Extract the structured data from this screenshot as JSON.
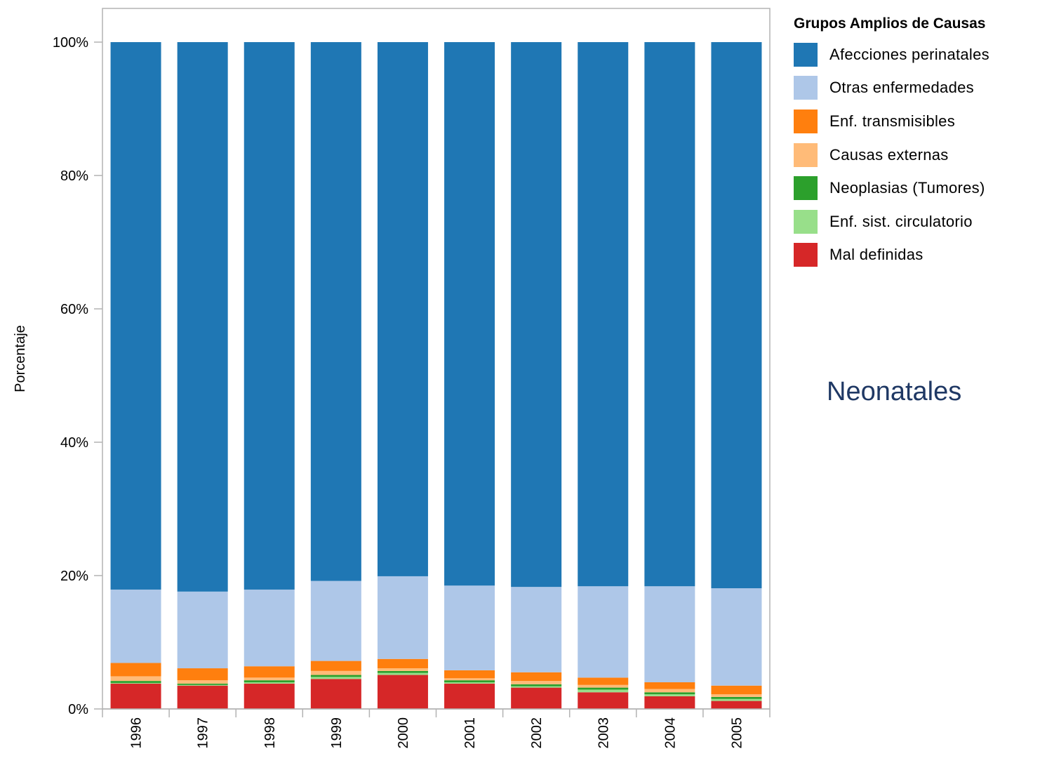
{
  "chart_data": {
    "type": "bar",
    "stacked": true,
    "categories": [
      "1996",
      "1997",
      "1998",
      "1999",
      "2000",
      "2001",
      "2002",
      "2003",
      "2004",
      "2005"
    ],
    "ylabel": "Porcentaje",
    "ylim": [
      0,
      100
    ],
    "yticks": [
      "0%",
      "20%",
      "40%",
      "60%",
      "80%",
      "100%"
    ],
    "grid": false,
    "legend": {
      "title": "Grupos Amplios de Causas",
      "placement": "right"
    },
    "annotation": "Neonatales",
    "series": [
      {
        "name": "Mal definidas",
        "color": "#d62728",
        "values": [
          3.8,
          3.5,
          3.8,
          4.5,
          5.1,
          3.8,
          3.2,
          2.5,
          1.9,
          1.2
        ]
      },
      {
        "name": "Enf. sist. circulatorio",
        "color": "#98df8a",
        "values": [
          0.1,
          0.1,
          0.2,
          0.3,
          0.3,
          0.2,
          0.2,
          0.4,
          0.3,
          0.3
        ]
      },
      {
        "name": "Neoplasias (Tumores)",
        "color": "#2ca02c",
        "values": [
          0.3,
          0.2,
          0.3,
          0.3,
          0.3,
          0.3,
          0.3,
          0.3,
          0.3,
          0.3
        ]
      },
      {
        "name": "Causas externas",
        "color": "#ffbb78",
        "values": [
          0.7,
          0.5,
          0.4,
          0.6,
          0.4,
          0.3,
          0.5,
          0.4,
          0.5,
          0.4
        ]
      },
      {
        "name": "Enf. transmisibles",
        "color": "#ff7f0e",
        "values": [
          2.0,
          1.8,
          1.7,
          1.5,
          1.4,
          1.2,
          1.3,
          1.1,
          1.0,
          1.3
        ]
      },
      {
        "name": "Otras enfermedades",
        "color": "#aec7e8",
        "values": [
          11.0,
          11.5,
          11.5,
          12.0,
          12.4,
          12.7,
          12.8,
          13.7,
          14.4,
          14.6
        ]
      },
      {
        "name": "Afecciones perinatales",
        "color": "#1f77b4",
        "values": [
          82.1,
          82.4,
          82.1,
          80.8,
          80.1,
          81.5,
          81.7,
          81.6,
          81.6,
          81.9
        ]
      }
    ]
  }
}
